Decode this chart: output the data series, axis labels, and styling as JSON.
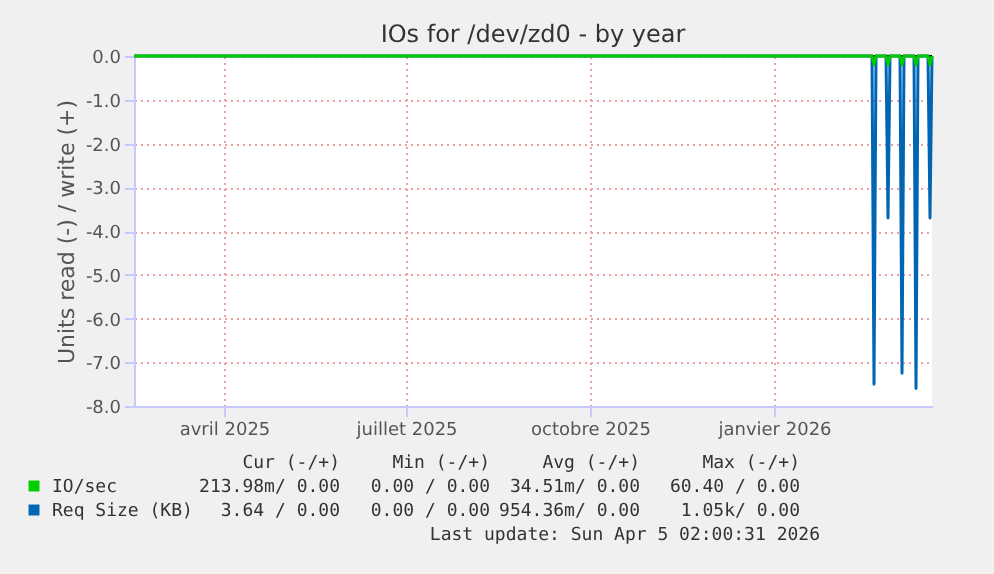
{
  "chart_data": {
    "type": "line",
    "title": "IOs for /dev/zd0 - by year",
    "ylabel": "Units read (-) / write (+)",
    "x": [
      "2025-03-02",
      "2026-03-06",
      "2026-03-07",
      "2026-03-08",
      "2026-03-13",
      "2026-03-14",
      "2026-03-15",
      "2026-03-20",
      "2026-03-21",
      "2026-03-22",
      "2026-03-27",
      "2026-03-28",
      "2026-03-29",
      "2026-04-03",
      "2026-04-04",
      "2026-04-05"
    ],
    "series": [
      {
        "name": "Req Size (KB)",
        "color": "#0066b3",
        "values": [
          0,
          0,
          -7.5,
          0,
          0,
          -3.7,
          0,
          0,
          -7.25,
          0,
          0,
          -7.6,
          0,
          0,
          -3.7,
          0
        ]
      },
      {
        "name": "IO/sec",
        "color": "#00cc00",
        "values": [
          0,
          0,
          -0.2,
          0,
          0,
          -0.2,
          0,
          0,
          -0.2,
          0,
          0,
          -0.2,
          0,
          0,
          -0.2,
          0
        ]
      }
    ],
    "xlim": [
      "2025-03-02",
      "2026-04-05"
    ],
    "xticks": [
      {
        "value": "2025-04-16",
        "label": "avril 2025"
      },
      {
        "value": "2025-07-16",
        "label": "juillet 2025"
      },
      {
        "value": "2025-10-16",
        "label": "octobre 2025"
      },
      {
        "value": "2026-01-16",
        "label": "janvier 2026"
      }
    ],
    "ylim": [
      -8,
      0
    ],
    "yticks": [
      {
        "value": -8,
        "label": "-8.0"
      },
      {
        "value": -7,
        "label": "-7.0"
      },
      {
        "value": -6,
        "label": "-6.0"
      },
      {
        "value": -5,
        "label": "-5.0"
      },
      {
        "value": -4,
        "label": "-4.0"
      },
      {
        "value": -3,
        "label": "-3.0"
      },
      {
        "value": -2,
        "label": "-2.0"
      },
      {
        "value": -1,
        "label": "-1.0"
      },
      {
        "value": 0,
        "label": "0.0"
      }
    ],
    "ref_lines": [
      {
        "axis": "y",
        "value": 0,
        "color": "#000000"
      }
    ],
    "grid": true,
    "legend": "bottom",
    "annotations": [
      "Cur (-/+)",
      "Min (-/+)",
      "Avg (-/+)",
      "Max (-/+)",
      "3.64 / 0.00",
      "0.00 / 0.00",
      "954.36m/ 0.00",
      "1.05k/ 0.00",
      "213.98m/ 0.00",
      "0.00 / 0.00",
      "34.51m/ 0.00",
      "60.40 / 0.00",
      "Last update: Sun Apr  5 02:00:31 2026"
    ]
  }
}
